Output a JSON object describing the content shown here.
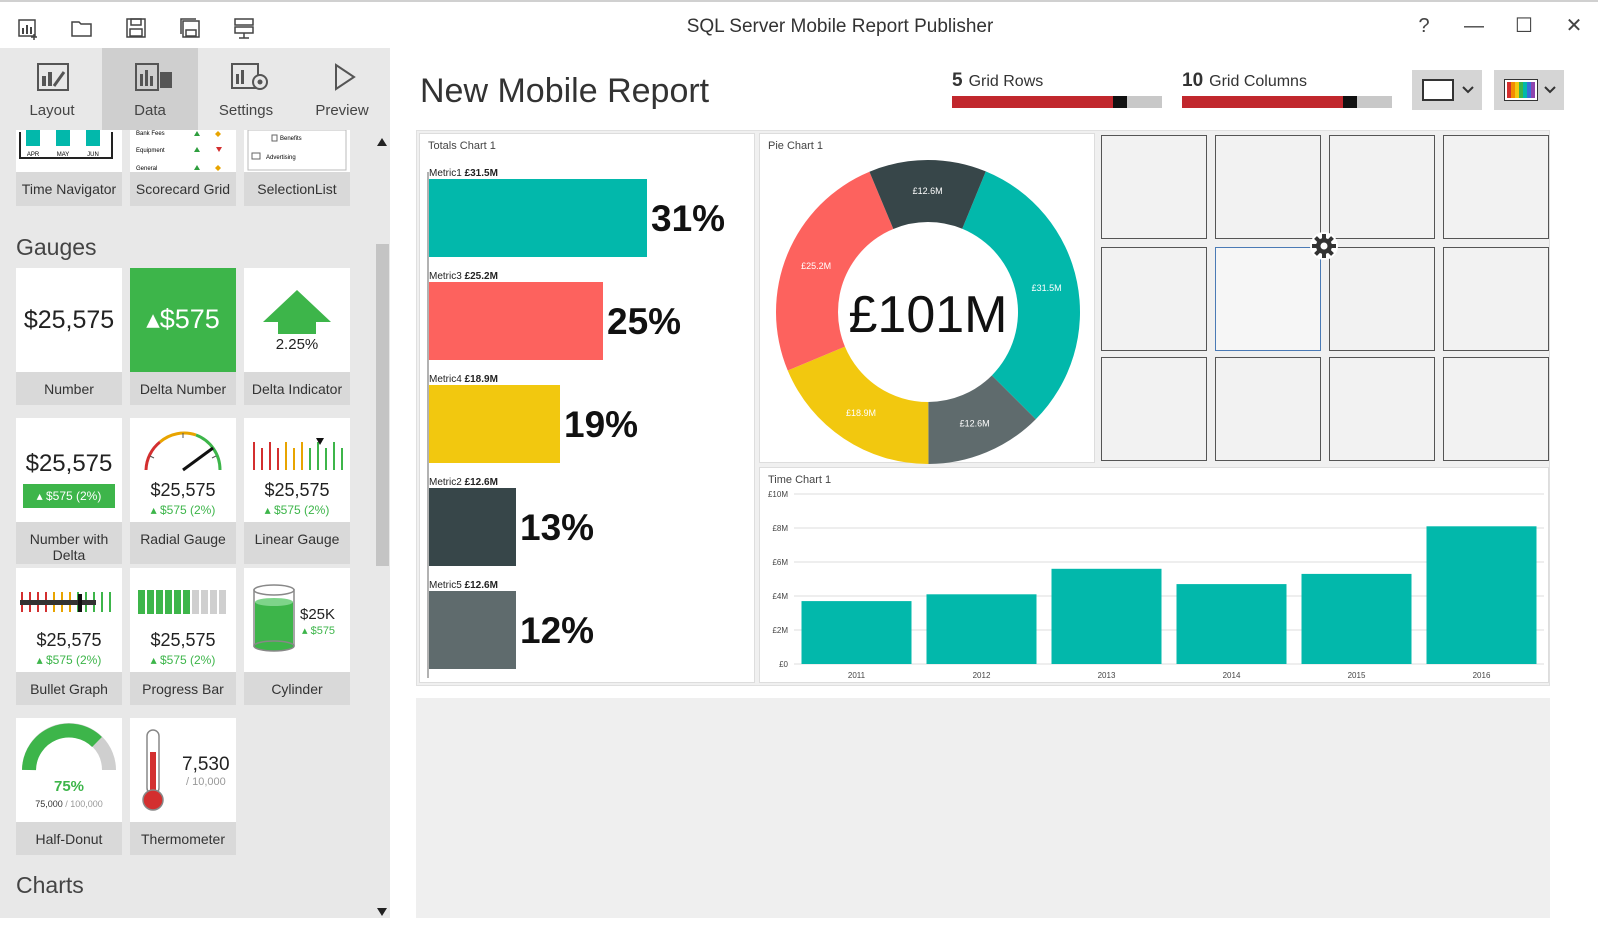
{
  "app": {
    "title": "SQL Server Mobile Report Publisher"
  },
  "titlebar": {
    "help": "?",
    "minimize": "—",
    "maximize": "☐",
    "close": "✕"
  },
  "nav": {
    "tabs": [
      {
        "label": "Layout"
      },
      {
        "label": "Data"
      },
      {
        "label": "Settings"
      },
      {
        "label": "Preview"
      }
    ]
  },
  "palette": {
    "top_tiles": [
      {
        "caption": "Time Navigator",
        "months": [
          "APR",
          "MAY",
          "JUN"
        ]
      },
      {
        "caption": "Scorecard Grid",
        "rows": [
          "Bank Fees",
          "Equipment",
          "General"
        ]
      },
      {
        "caption": "SelectionList",
        "items": [
          "Benefits",
          "Advertising"
        ]
      }
    ],
    "gauges_header": "Gauges",
    "gauges": [
      {
        "caption": "Number",
        "value": "$25,575"
      },
      {
        "caption": "Delta Number",
        "value": "▴$575"
      },
      {
        "caption": "Delta Indicator",
        "value": "2.25%"
      },
      {
        "caption": "Number with Delta",
        "value": "$25,575",
        "delta": "▴ $575 (2%)"
      },
      {
        "caption": "Radial Gauge",
        "value": "$25,575",
        "delta": "▴ $575 (2%)"
      },
      {
        "caption": "Linear Gauge",
        "value": "$25,575",
        "delta": "▴ $575 (2%)"
      },
      {
        "caption": "Bullet Graph",
        "value": "$25,575",
        "delta": "▴ $575 (2%)"
      },
      {
        "caption": "Progress Bar",
        "value": "$25,575",
        "delta": "▴ $575 (2%)"
      },
      {
        "caption": "Cylinder",
        "value": "$25K",
        "delta": "▴ $575"
      },
      {
        "caption": "Half-Donut",
        "value": "75%",
        "sub": "75,000",
        "sub2": "/ 100,000"
      },
      {
        "caption": "Thermometer",
        "value": "7,530",
        "sub": "/ 10,000"
      }
    ],
    "charts_header": "Charts"
  },
  "report": {
    "title": "New Mobile Report",
    "grid_rows": {
      "value": "5",
      "label": "Grid Rows",
      "fraction": 0.8
    },
    "grid_columns": {
      "value": "10",
      "label": "Grid Columns",
      "fraction": 0.8
    }
  },
  "totals_chart": {
    "title": "Totals Chart 1",
    "bars": [
      {
        "metric": "Metric1",
        "amount": "£31.5M",
        "pct": "31%",
        "value": 31.5,
        "color": "#02b8ab"
      },
      {
        "metric": "Metric3",
        "amount": "£25.2M",
        "pct": "25%",
        "value": 25.2,
        "color": "#fd625e"
      },
      {
        "metric": "Metric4",
        "amount": "£18.9M",
        "pct": "19%",
        "value": 18.9,
        "color": "#f2c80f"
      },
      {
        "metric": "Metric2",
        "amount": "£12.6M",
        "pct": "13%",
        "value": 12.6,
        "color": "#374649"
      },
      {
        "metric": "Metric5",
        "amount": "£12.6M",
        "pct": "12%",
        "value": 12.6,
        "color": "#5f6b6d"
      }
    ]
  },
  "pie_chart": {
    "title": "Pie Chart 1",
    "center": "£101M",
    "slices": [
      {
        "label": "£31.5M",
        "value": 31.5,
        "color": "#02b8ab"
      },
      {
        "label": "£12.6M",
        "value": 12.6,
        "color": "#5f6b6d"
      },
      {
        "label": "£18.9M",
        "value": 18.9,
        "color": "#f2c80f"
      },
      {
        "label": "£25.2M",
        "value": 25.2,
        "color": "#fd625e"
      },
      {
        "label": "£12.6M",
        "value": 12.6,
        "color": "#374649"
      }
    ]
  },
  "chart_data": {
    "type": "bar",
    "title": "Time Chart 1",
    "categories": [
      "2011",
      "2012",
      "2013",
      "2014",
      "2015",
      "2016"
    ],
    "values": [
      3.7,
      4.1,
      5.6,
      4.7,
      5.3,
      8.1
    ],
    "yticks": [
      "£0",
      "£2M",
      "£4M",
      "£6M",
      "£8M",
      "£10M"
    ],
    "ylim": [
      0,
      10
    ],
    "color": "#02b8ab"
  }
}
